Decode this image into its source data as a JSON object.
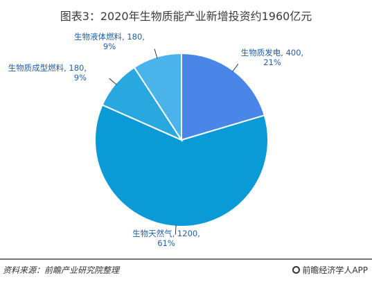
{
  "title": "图表3：2020年生物质能产业新增投资约1960亿元",
  "chart_data": {
    "type": "pie",
    "unit": "亿元",
    "slices": [
      {
        "name": "生物质发电",
        "value": 400,
        "percent": "21%",
        "color": "#4a86e8"
      },
      {
        "name": "生物天然气",
        "value": 1200,
        "percent": "61%",
        "color": "#0a9bd6"
      },
      {
        "name": "生物质成型燃料",
        "value": 180,
        "percent": "9%",
        "color": "#29a8e0"
      },
      {
        "name": "生物液体燃料",
        "value": 180,
        "percent": "9%",
        "color": "#4ab4ea"
      }
    ]
  },
  "footer": {
    "source": "资料来源：前瞻产业研究院整理",
    "brand": "前瞻经济学人APP",
    "brand_icon": "qianzhan-logo-icon"
  }
}
